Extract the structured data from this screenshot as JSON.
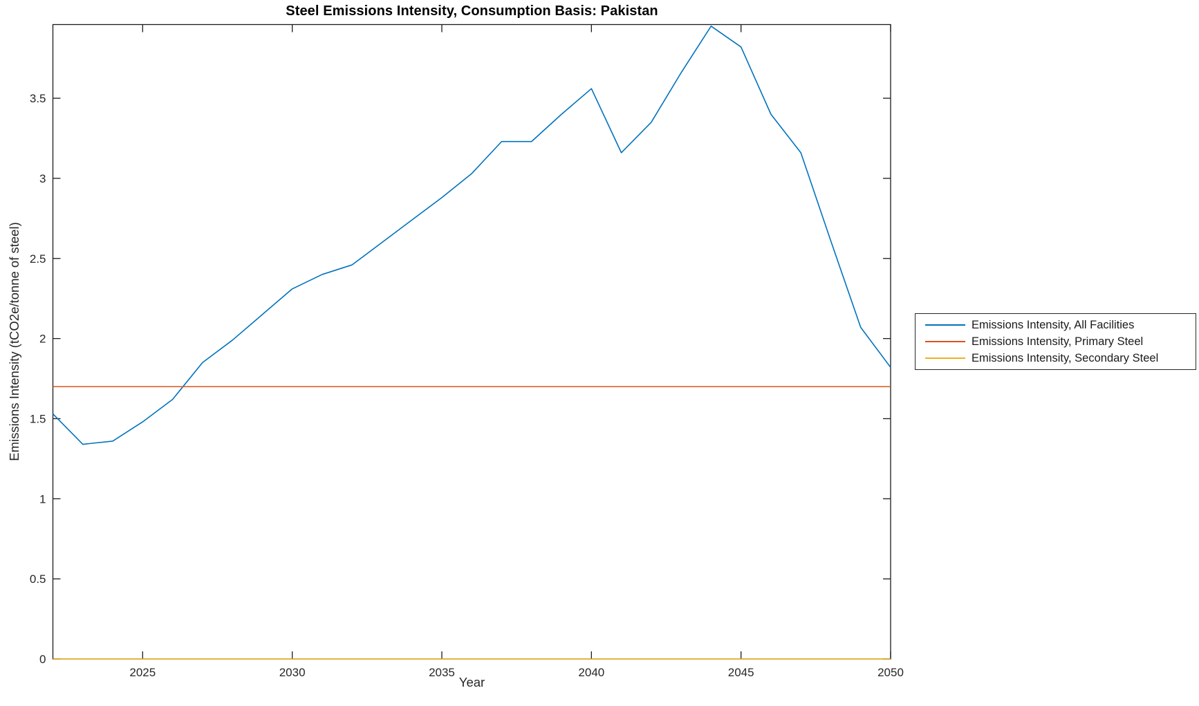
{
  "figure": {
    "title": "Steel Emissions Intensity, Consumption Basis: Pakistan",
    "xlabel": "Year",
    "ylabel": "Emissions Intensity (tCO2e/tonne of steel)"
  },
  "legend": {
    "position": "outside-right",
    "items": [
      {
        "label": "Emissions Intensity, All Facilities",
        "color": "#0072BD"
      },
      {
        "label": "Emissions Intensity, Primary Steel",
        "color": "#D95319"
      },
      {
        "label": "Emissions Intensity, Secondary Steel",
        "color": "#EDB120"
      }
    ]
  },
  "chart_data": {
    "type": "line",
    "title": "Steel Emissions Intensity, Consumption Basis: Pakistan",
    "xlabel": "Year",
    "ylabel": "Emissions Intensity (tCO2e/tonne of steel)",
    "grid": false,
    "legend_position": "outside-right",
    "axis_color": "#1a1a1a",
    "tick_label_color": "#262626",
    "xlim": [
      2022,
      2050
    ],
    "ylim": [
      0,
      3.96
    ],
    "xticks": [
      2025,
      2030,
      2035,
      2040,
      2045,
      2050
    ],
    "yticks": [
      0,
      0.5,
      1,
      1.5,
      2,
      2.5,
      3,
      3.5
    ],
    "x": [
      2022,
      2023,
      2024,
      2025,
      2026,
      2027,
      2028,
      2029,
      2030,
      2031,
      2032,
      2033,
      2034,
      2035,
      2036,
      2037,
      2038,
      2039,
      2040,
      2041,
      2042,
      2043,
      2044,
      2045,
      2046,
      2047,
      2048,
      2049,
      2050
    ],
    "series": [
      {
        "name": "Emissions Intensity, All Facilities",
        "color": "#0072BD",
        "values": [
          1.53,
          1.34,
          1.36,
          1.48,
          1.62,
          1.85,
          1.99,
          2.15,
          2.31,
          2.4,
          2.46,
          2.6,
          2.74,
          2.88,
          3.03,
          3.23,
          3.23,
          3.4,
          3.56,
          3.16,
          3.35,
          3.66,
          3.95,
          3.82,
          3.4,
          3.16,
          2.61,
          2.07,
          1.82
        ]
      },
      {
        "name": "Emissions Intensity, Primary Steel",
        "color": "#D95319",
        "values": [
          1.7,
          1.7,
          1.7,
          1.7,
          1.7,
          1.7,
          1.7,
          1.7,
          1.7,
          1.7,
          1.7,
          1.7,
          1.7,
          1.7,
          1.7,
          1.7,
          1.7,
          1.7,
          1.7,
          1.7,
          1.7,
          1.7,
          1.7,
          1.7,
          1.7,
          1.7,
          1.7,
          1.7,
          1.7
        ]
      },
      {
        "name": "Emissions Intensity, Secondary Steel",
        "color": "#EDB120",
        "values": [
          0,
          0,
          0,
          0,
          0,
          0,
          0,
          0,
          0,
          0,
          0,
          0,
          0,
          0,
          0,
          0,
          0,
          0,
          0,
          0,
          0,
          0,
          0,
          0,
          0,
          0,
          0,
          0,
          0
        ]
      }
    ]
  }
}
